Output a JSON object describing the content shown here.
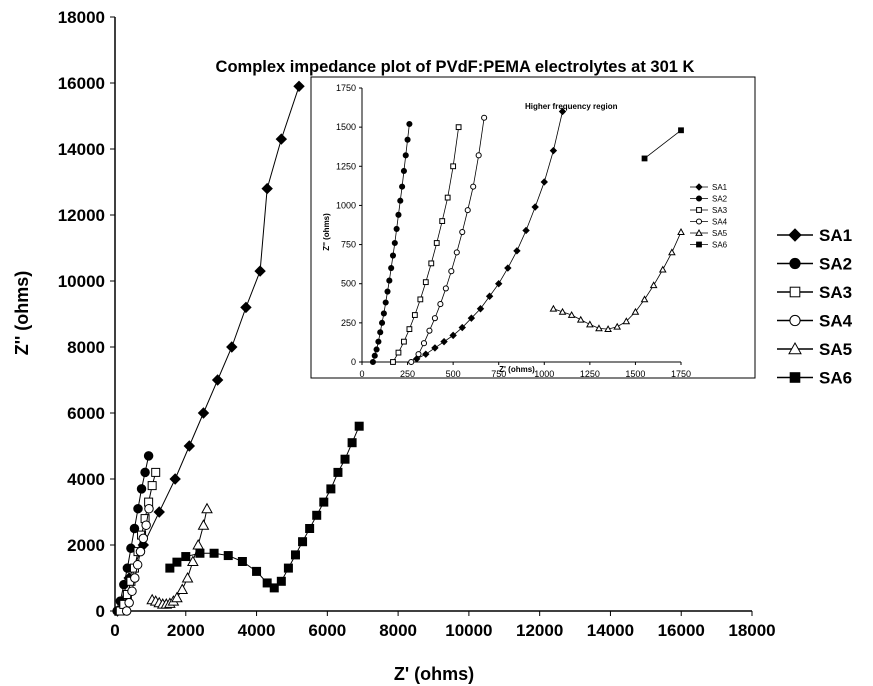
{
  "chart_data": [
    {
      "type": "scatter",
      "title": "Complex impedance plot of PVdF:PEMA electrolytes at 301 K",
      "xlabel": "Z' (ohms)",
      "ylabel": "Z'' (ohms)",
      "xlim": [
        0,
        18000
      ],
      "ylim": [
        0,
        18000
      ],
      "x_ticks": [
        0,
        2000,
        4000,
        6000,
        8000,
        10000,
        12000,
        14000,
        16000,
        18000
      ],
      "y_ticks": [
        0,
        2000,
        4000,
        6000,
        8000,
        10000,
        12000,
        14000,
        16000,
        18000
      ],
      "grid": false,
      "legend_position": "right",
      "series": [
        {
          "name": "SA1",
          "marker": "diamond-filled",
          "x": [
            70,
            400,
            800,
            1250,
            1700,
            2100,
            2500,
            2900,
            3300,
            3700,
            4100,
            4300,
            4700,
            5200
          ],
          "y": [
            0,
            1000,
            2000,
            3000,
            4000,
            5000,
            6000,
            7000,
            8000,
            9200,
            10300,
            12800,
            14300,
            15900
          ]
        },
        {
          "name": "SA2",
          "marker": "circle-filled",
          "x": [
            60,
            150,
            250,
            350,
            450,
            550,
            650,
            750,
            850,
            950
          ],
          "y": [
            0,
            300,
            800,
            1300,
            1900,
            2500,
            3100,
            3700,
            4200,
            4700
          ]
        },
        {
          "name": "SA3",
          "marker": "square-open",
          "x": [
            150,
            250,
            350,
            450,
            550,
            650,
            750,
            850,
            950,
            1050,
            1150
          ],
          "y": [
            0,
            200,
            500,
            900,
            1300,
            1800,
            2300,
            2800,
            3300,
            3800,
            4200
          ]
        },
        {
          "name": "SA4",
          "marker": "circle-open",
          "x": [
            330,
            400,
            480,
            560,
            640,
            720,
            800,
            880,
            960
          ],
          "y": [
            0,
            250,
            600,
            1000,
            1400,
            1800,
            2200,
            2600,
            3100
          ]
        },
        {
          "name": "SA5",
          "marker": "triangle-open",
          "x": [
            1050,
            1150,
            1250,
            1350,
            1450,
            1550,
            1650,
            1750,
            1900,
            2050,
            2200,
            2350,
            2500,
            2600
          ],
          "y": [
            340,
            300,
            250,
            210,
            210,
            230,
            300,
            400,
            650,
            1000,
            1500,
            2000,
            2600,
            3100
          ]
        },
        {
          "name": "SA6",
          "marker": "square-filled",
          "x": [
            1550,
            1750,
            2000,
            2400,
            2800,
            3200,
            3600,
            4000,
            4300,
            4500,
            4700,
            4900,
            5100,
            5300,
            5500,
            5700,
            5900,
            6100,
            6300,
            6500,
            6700,
            6900
          ],
          "y": [
            1300,
            1480,
            1650,
            1750,
            1750,
            1680,
            1500,
            1200,
            850,
            700,
            900,
            1300,
            1700,
            2100,
            2500,
            2900,
            3300,
            3700,
            4200,
            4600,
            5100,
            5600
          ]
        }
      ]
    },
    {
      "type": "scatter",
      "title": "",
      "annotation": "Higher frequency region",
      "xlabel": "Z' (ohms)",
      "ylabel": "Z'' (ohms)",
      "xlim": [
        0,
        1750
      ],
      "ylim": [
        0,
        1750
      ],
      "x_ticks": [
        0,
        250,
        500,
        750,
        1000,
        1250,
        1500,
        1750
      ],
      "y_ticks": [
        0,
        250,
        500,
        750,
        1000,
        1250,
        1500,
        1750
      ],
      "grid": false,
      "legend_position": "right",
      "series": [
        {
          "name": "SA1",
          "marker": "diamond-filled",
          "x": [
            300,
            350,
            400,
            450,
            500,
            550,
            600,
            650,
            700,
            750,
            800,
            850,
            900,
            950,
            1000,
            1050,
            1100
          ],
          "y": [
            20,
            50,
            90,
            130,
            170,
            220,
            280,
            340,
            420,
            500,
            600,
            710,
            840,
            990,
            1150,
            1350,
            1600
          ]
        },
        {
          "name": "SA2",
          "marker": "circle-filled",
          "x": [
            60,
            70,
            80,
            90,
            100,
            110,
            120,
            130,
            140,
            150,
            160,
            170,
            180,
            190,
            200,
            210,
            220,
            230,
            240,
            250,
            260
          ],
          "y": [
            0,
            40,
            80,
            130,
            190,
            250,
            310,
            380,
            450,
            520,
            600,
            680,
            760,
            850,
            940,
            1030,
            1120,
            1220,
            1320,
            1420,
            1520
          ]
        },
        {
          "name": "SA3",
          "marker": "square-open",
          "x": [
            170,
            200,
            230,
            260,
            290,
            320,
            350,
            380,
            410,
            440,
            470,
            500,
            530
          ],
          "y": [
            0,
            60,
            130,
            210,
            300,
            400,
            510,
            630,
            760,
            900,
            1050,
            1250,
            1500
          ]
        },
        {
          "name": "SA4",
          "marker": "circle-open",
          "x": [
            270,
            310,
            340,
            370,
            400,
            430,
            460,
            490,
            520,
            550,
            580,
            610,
            640,
            670
          ],
          "y": [
            0,
            50,
            120,
            200,
            280,
            370,
            470,
            580,
            700,
            830,
            970,
            1120,
            1320,
            1560
          ]
        },
        {
          "name": "SA5",
          "marker": "triangle-open",
          "x": [
            1050,
            1100,
            1150,
            1200,
            1250,
            1300,
            1350,
            1400,
            1450,
            1500,
            1550,
            1600,
            1650,
            1700,
            1750
          ],
          "y": [
            340,
            320,
            300,
            270,
            240,
            215,
            210,
            225,
            260,
            320,
            400,
            490,
            590,
            700,
            830
          ]
        },
        {
          "name": "SA6",
          "marker": "square-filled",
          "x": [
            1550,
            1750
          ],
          "y": [
            1300,
            1480
          ]
        }
      ]
    }
  ]
}
